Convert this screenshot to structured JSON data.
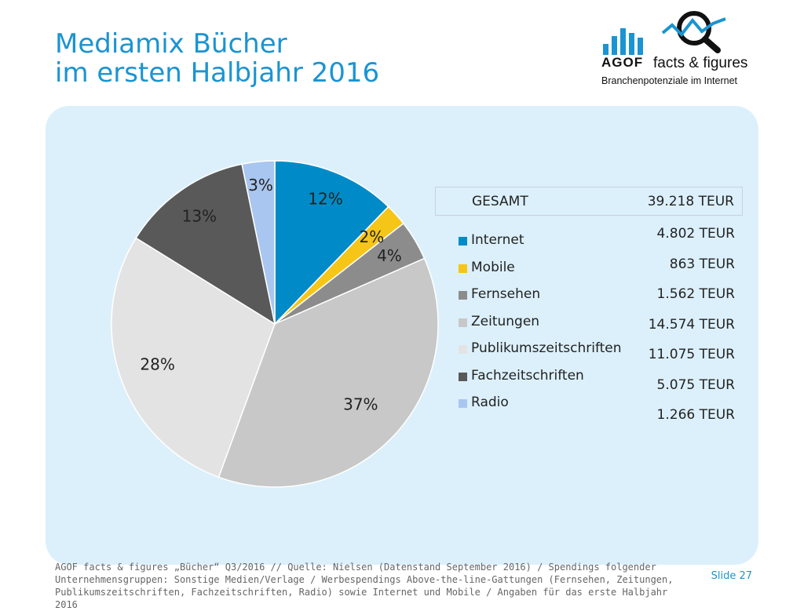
{
  "title": {
    "line1": "Mediamix Bücher",
    "line2": "im ersten Halbjahr 2016"
  },
  "logo": {
    "brand": "AGOF",
    "tagline": "facts & figures",
    "subtitle": "Branchenpotenziale im Internet",
    "icon": "magnifier-chart-icon"
  },
  "total": {
    "label": "GESAMT",
    "value": "39.218 TEUR"
  },
  "chart_data": {
    "type": "pie",
    "categories": [
      "Internet",
      "Mobile",
      "Fernsehen",
      "Zeitungen",
      "Publikumszeitschriften",
      "Fachzeitschriften",
      "Radio"
    ],
    "values": [
      12.24,
      2.2,
      3.98,
      37.16,
      28.24,
      12.94,
      3.23
    ],
    "value_labels": [
      "12%",
      "2%",
      "4%",
      "37%",
      "28%",
      "13%",
      "3%"
    ],
    "amounts": [
      "4.802 TEUR",
      "863 TEUR",
      "1.562 TEUR",
      "14.574 TEUR",
      "11.075 TEUR",
      "5.075 TEUR",
      "1.266 TEUR"
    ],
    "colors": [
      "#008bc8",
      "#f5c518",
      "#8c8c8c",
      "#c8c8c8",
      "#e3e3e3",
      "#595959",
      "#a9c6f0"
    ],
    "legend": "right"
  },
  "footer": {
    "source": "AGOF facts & figures „Bücher“ Q3/2016 // Quelle: Nielsen (Datenstand September 2016) / Spendings folgender Unternehmensgruppen: Sonstige Medien/Verlage / Werbespendings Above-the-line-Gattungen (Fernsehen, Zeitungen, Publikumszeitschriften, Fachzeitschriften, Radio) sowie Internet und Mobile / Angaben für das erste Halbjahr 2016",
    "slide": "Slide 27"
  }
}
